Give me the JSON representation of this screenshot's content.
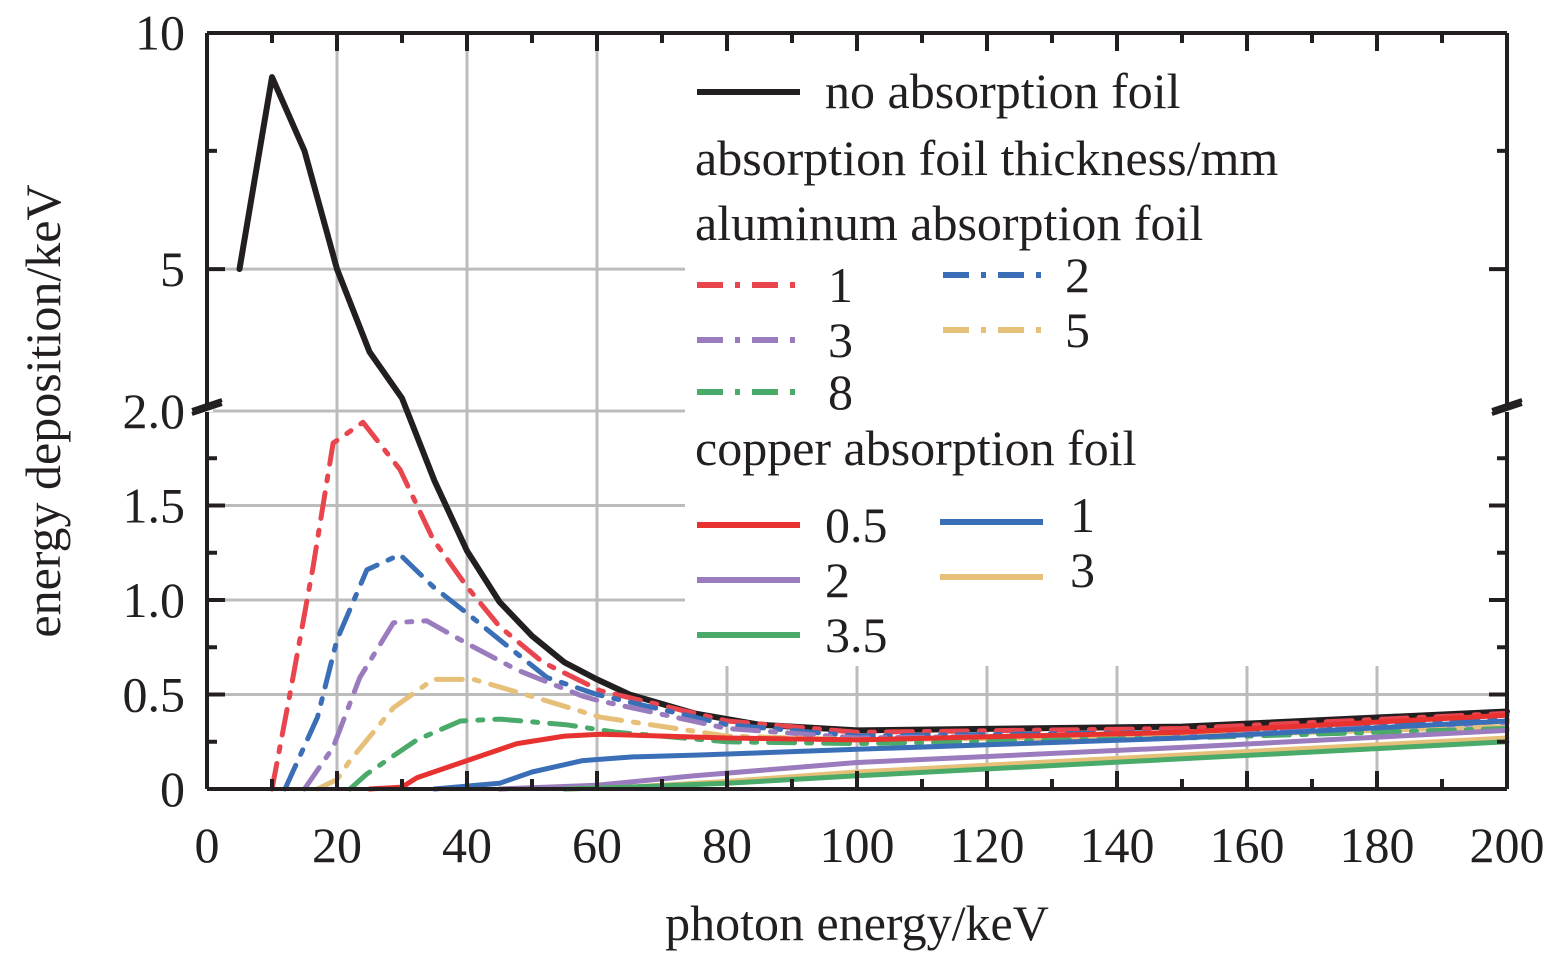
{
  "chart_data": {
    "type": "line",
    "title": "",
    "xlabel": "photon energy/keV",
    "ylabel": "energy deposition/keV",
    "xlim": [
      0,
      200
    ],
    "ylim": [
      0,
      10
    ],
    "y_axis_break": {
      "lower_range": [
        0,
        2.0
      ],
      "upper_range": [
        2.0,
        10
      ]
    },
    "grid": true,
    "legend_placement": "top-right",
    "x_ticks": [
      "0",
      "20",
      "40",
      "60",
      "80",
      "100",
      "120",
      "140",
      "160",
      "180",
      "200"
    ],
    "y_ticks": [
      "0",
      "0.5",
      "1.0",
      "1.5",
      "2.0",
      "5",
      "10"
    ],
    "legend": {
      "heading1": "absorption foil thickness/mm",
      "heading_al": "aluminum absorption foil",
      "heading_cu": "copper absorption foil"
    },
    "colors": {
      "black": "#231f20",
      "red": "#e8454f",
      "blue": "#3a6fb8",
      "purple": "#9a7bbd",
      "yellow": "#e6bf78",
      "green": "#4aaa6a",
      "grid": "#bcbcbc"
    },
    "series": [
      {
        "name": "no absorption foil",
        "group": "none",
        "style": "solid",
        "color": "#231f20",
        "x": [
          5,
          10,
          15,
          20,
          25,
          30,
          35,
          40,
          45,
          50,
          55,
          60,
          65,
          75,
          85,
          100,
          150,
          200
        ],
        "y": [
          5.0,
          9.06,
          7.5,
          5.0,
          3.25,
          2.27,
          1.63,
          1.26,
          0.99,
          0.81,
          0.67,
          0.58,
          0.5,
          0.4,
          0.34,
          0.31,
          0.33,
          0.41
        ]
      },
      {
        "name": "1",
        "group": "aluminum",
        "style": "dashdot",
        "color": "#e8454f",
        "x": [
          10,
          12.8,
          16.3,
          19.4,
          24,
          29.7,
          34.8,
          40,
          45,
          51.7,
          60.5,
          80,
          100,
          150,
          200
        ],
        "y": [
          0,
          0.51,
          1.17,
          1.83,
          1.94,
          1.69,
          1.32,
          1.07,
          0.86,
          0.67,
          0.52,
          0.36,
          0.3,
          0.32,
          0.4
        ]
      },
      {
        "name": "2",
        "group": "aluminum",
        "style": "dashdot",
        "color": "#3a6fb8",
        "x": [
          12,
          17,
          20,
          24.6,
          29.7,
          34.8,
          40,
          45,
          52.3,
          60,
          80,
          100,
          150,
          200
        ],
        "y": [
          0,
          0.38,
          0.79,
          1.16,
          1.24,
          1.07,
          0.93,
          0.79,
          0.59,
          0.5,
          0.34,
          0.28,
          0.3,
          0.37
        ]
      },
      {
        "name": "3",
        "group": "aluminum",
        "style": "dashdot",
        "color": "#9a7bbd",
        "x": [
          15,
          19.4,
          23.5,
          28.7,
          33.8,
          40,
          47.7,
          57.9,
          60,
          80,
          100,
          150,
          200
        ],
        "y": [
          0,
          0.22,
          0.59,
          0.88,
          0.89,
          0.77,
          0.63,
          0.49,
          0.47,
          0.32,
          0.27,
          0.29,
          0.35
        ]
      },
      {
        "name": "5",
        "group": "aluminum",
        "style": "dashdot",
        "color": "#e6bf78",
        "x": [
          17,
          20,
          22,
          28.7,
          34.8,
          41,
          50,
          60.5,
          80,
          100,
          150,
          200
        ],
        "y": [
          0,
          0.05,
          0.15,
          0.43,
          0.58,
          0.58,
          0.49,
          0.38,
          0.28,
          0.26,
          0.28,
          0.33
        ]
      },
      {
        "name": "8",
        "group": "aluminum",
        "style": "dashdot",
        "color": "#4aaa6a",
        "x": [
          22,
          24.6,
          32.3,
          39,
          45,
          55.2,
          63,
          80,
          100,
          150,
          200
        ],
        "y": [
          0,
          0.08,
          0.26,
          0.36,
          0.37,
          0.34,
          0.3,
          0.25,
          0.24,
          0.27,
          0.32
        ]
      },
      {
        "name": "0.5",
        "group": "copper",
        "style": "solid",
        "color": "#e8322f",
        "x": [
          25,
          30,
          32.3,
          40,
          47.7,
          55,
          60.5,
          80,
          100,
          150,
          200
        ],
        "y": [
          0,
          0.01,
          0.06,
          0.15,
          0.24,
          0.28,
          0.29,
          0.27,
          0.26,
          0.3,
          0.39
        ]
      },
      {
        "name": "1",
        "group": "copper",
        "style": "solid",
        "color": "#3a6fb8",
        "x": [
          35,
          45,
          50,
          57.8,
          65.5,
          75.8,
          100,
          150,
          200
        ],
        "y": [
          0,
          0.03,
          0.09,
          0.15,
          0.17,
          0.18,
          0.21,
          0.27,
          0.36
        ]
      },
      {
        "name": "2",
        "group": "copper",
        "style": "solid",
        "color": "#9a7bbd",
        "x": [
          45,
          60,
          75,
          100,
          150,
          200
        ],
        "y": [
          0,
          0.02,
          0.07,
          0.14,
          0.22,
          0.31
        ]
      },
      {
        "name": "3",
        "group": "copper",
        "style": "solid",
        "color": "#e6bf78",
        "x": [
          55,
          65,
          80,
          100,
          150,
          200
        ],
        "y": [
          0,
          0.01,
          0.04,
          0.09,
          0.18,
          0.27
        ]
      },
      {
        "name": "3.5",
        "group": "copper",
        "style": "solid",
        "color": "#4aaa6a",
        "x": [
          55,
          65,
          80,
          100,
          150,
          200
        ],
        "y": [
          0,
          0.01,
          0.03,
          0.07,
          0.16,
          0.25
        ]
      }
    ]
  }
}
